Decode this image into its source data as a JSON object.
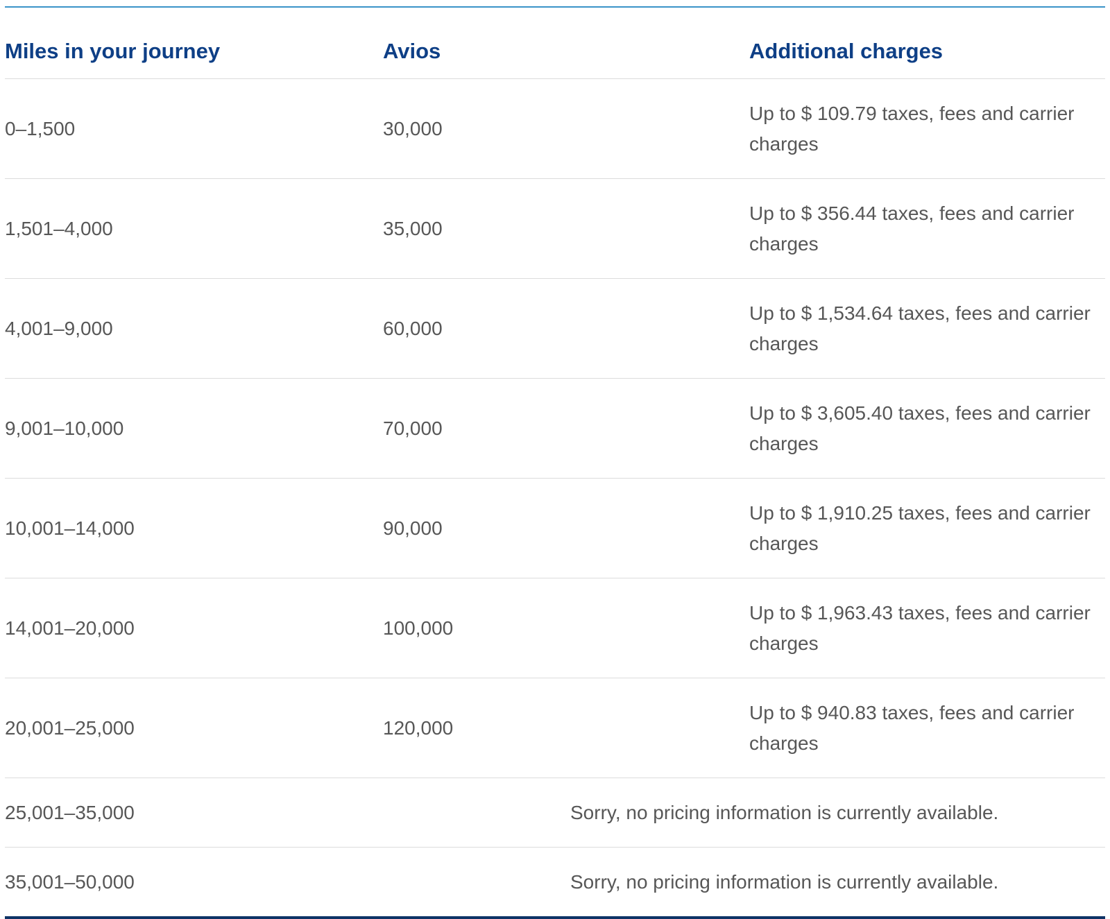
{
  "table": {
    "headers": {
      "miles": "Miles in your journey",
      "avios": "Avios",
      "charges": "Additional charges"
    },
    "rows": [
      {
        "miles": "0–1,500",
        "avios": "30,000",
        "charges": "Up to $ 109.79 taxes, fees and carrier charges"
      },
      {
        "miles": "1,501–4,000",
        "avios": "35,000",
        "charges": "Up to $ 356.44 taxes, fees and carrier charges"
      },
      {
        "miles": "4,001–9,000",
        "avios": "60,000",
        "charges": "Up to $ 1,534.64 taxes, fees and carrier charges"
      },
      {
        "miles": "9,001–10,000",
        "avios": "70,000",
        "charges": "Up to $ 3,605.40 taxes, fees and carrier charges"
      },
      {
        "miles": "10,001–14,000",
        "avios": "90,000",
        "charges": "Up to $ 1,910.25 taxes, fees and carrier charges"
      },
      {
        "miles": "14,001–20,000",
        "avios": "100,000",
        "charges": "Up to $ 1,963.43 taxes, fees and carrier charges"
      },
      {
        "miles": "20,001–25,000",
        "avios": "120,000",
        "charges": "Up to $ 940.83 taxes, fees and carrier charges"
      }
    ],
    "unavailable_rows": [
      {
        "miles": "25,001–35,000",
        "message": "Sorry, no pricing information is currently available."
      },
      {
        "miles": "35,001–50,000",
        "message": "Sorry, no pricing information is currently available."
      }
    ]
  },
  "colors": {
    "header_text": "#0e3f86",
    "body_text": "#575757",
    "top_rule": "#3a93c8",
    "bottom_rule": "#0e3366",
    "row_divider": "#dcdcdc"
  }
}
